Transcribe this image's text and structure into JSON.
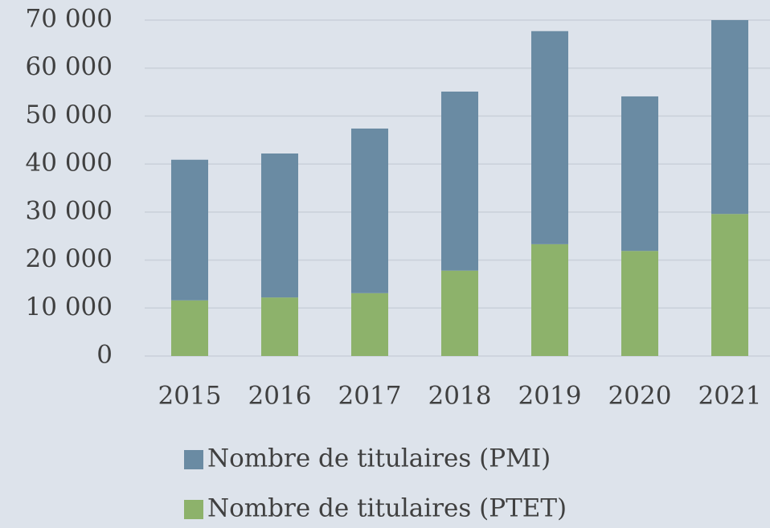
{
  "chart_data": {
    "type": "stacked_bar",
    "categories": [
      "2015",
      "2016",
      "2017",
      "2018",
      "2019",
      "2020",
      "2021"
    ],
    "series": [
      {
        "name": "Nombre de titulaires (PMI)",
        "color": "#6a8ba3",
        "values": [
          29300,
          30000,
          34300,
          37300,
          44400,
          32200,
          40400
        ]
      },
      {
        "name": "Nombre de titulaires (PTET)",
        "color": "#8db26b",
        "values": [
          11600,
          12200,
          13100,
          17800,
          23300,
          21900,
          29600
        ]
      }
    ],
    "ylim": [
      0,
      70000
    ],
    "yticks": [
      0,
      {
        "value": 10000,
        "label": "10 000"
      },
      {
        "value": 20000,
        "label": "20 000"
      },
      {
        "value": 30000,
        "label": "30 000"
      },
      {
        "value": 40000,
        "label": "40 000"
      },
      {
        "value": 50000,
        "label": "50 000"
      },
      {
        "value": 60000,
        "label": "60 000"
      },
      {
        "value": 70000,
        "label": "70 000"
      }
    ],
    "grid": true
  }
}
